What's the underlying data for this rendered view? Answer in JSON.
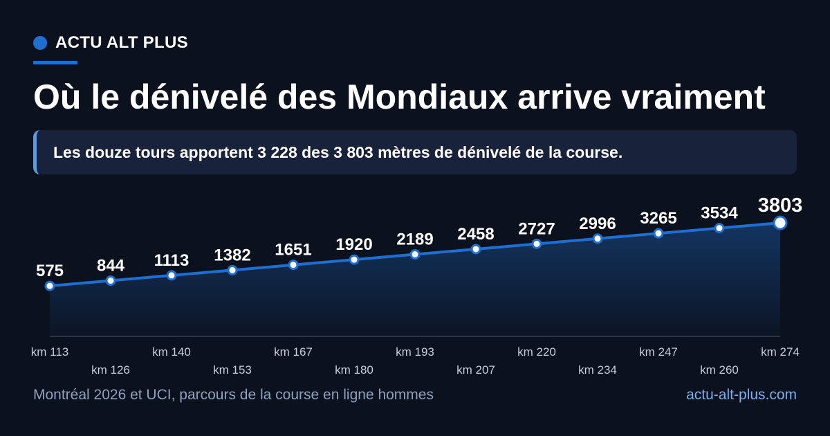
{
  "brand": {
    "name": "ACTU ALT PLUS",
    "accent": "#1f6fd1"
  },
  "headline": "Où le dénivelé des Mondiaux arrive vraiment",
  "subtitle": "Les douze tours apportent 3 228 des 3 803 mètres de dénivelé de la course.",
  "footer": {
    "source": "Montréal 2026 et UCI, parcours de la course en ligne hommes",
    "url": "actu-alt-plus.com"
  },
  "chart_data": {
    "type": "area",
    "x": [
      113,
      126,
      140,
      153,
      167,
      180,
      193,
      207,
      220,
      234,
      247,
      260,
      274
    ],
    "x_tick_labels": [
      "km 113",
      "km 126",
      "km 140",
      "km 153",
      "km 167",
      "km 180",
      "km 193",
      "km 207",
      "km 220",
      "km 234",
      "km 247",
      "km 260",
      "km 274"
    ],
    "values": [
      575,
      844,
      1113,
      1382,
      1651,
      1920,
      2189,
      2458,
      2727,
      2996,
      3265,
      3534,
      3803
    ],
    "data_labels": [
      "575",
      "844",
      "1113",
      "1382",
      "1651",
      "1920",
      "2189",
      "2458",
      "2727",
      "2996",
      "3265",
      "3534",
      "3803"
    ],
    "ylim": [
      -1370,
      3803
    ],
    "grid": false,
    "legend": "none",
    "colors": {
      "line": "#1f6fd1",
      "marker_fill": "#ffffff",
      "baseline": "#2b3448"
    }
  }
}
